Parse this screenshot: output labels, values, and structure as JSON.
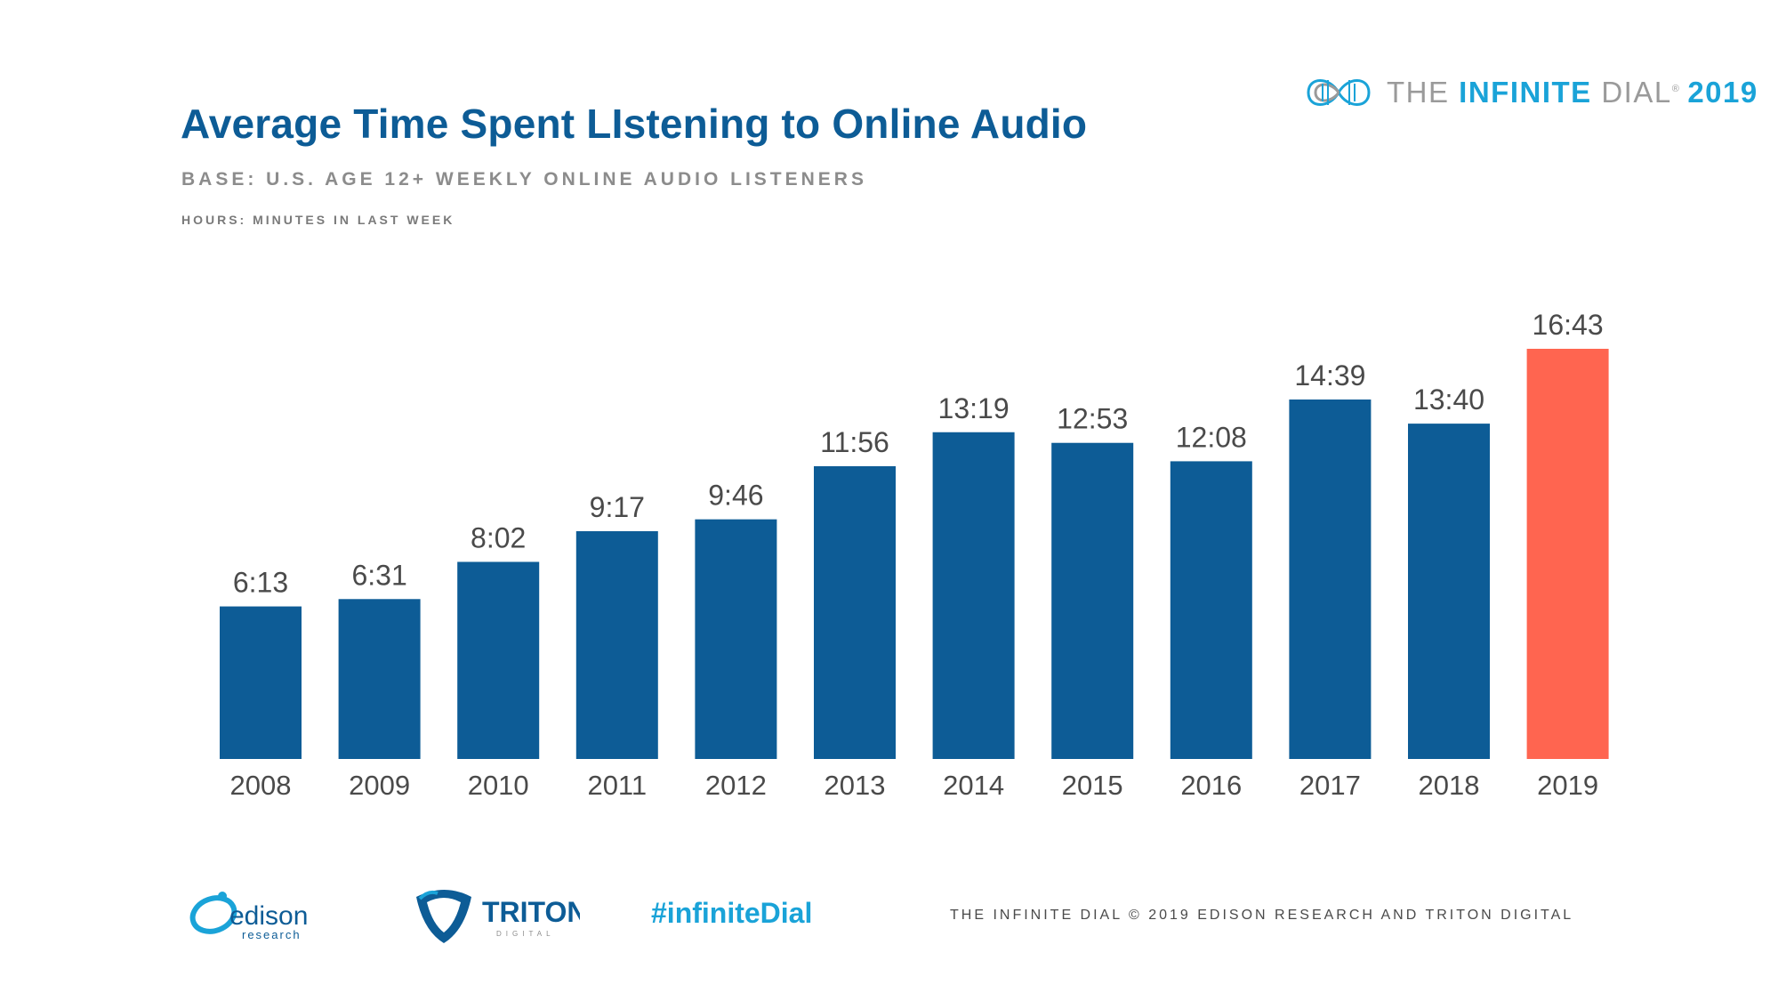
{
  "header": {
    "title": "Average Time Spent LIstening to Online Audio",
    "subtitle": "BASE: U.S. AGE 12+ WEEKLY ONLINE AUDIO LISTENERS",
    "note": "HOURS: MINUTES IN LAST WEEK"
  },
  "brand": {
    "the": "THE ",
    "infinite": "INFINITE",
    "dial": " DIAL",
    "reg": "®",
    "year": "2019"
  },
  "footer": {
    "edison_logo_text": "edison",
    "edison_logo_sub": "research",
    "triton_logo_text": "TRITON",
    "triton_logo_sub": "DIGITAL",
    "hashtag": "#infiniteDial",
    "copyright": "THE INFINITE DIAL © 2019 EDISON RESEARCH AND TRITON DIGITAL"
  },
  "colors": {
    "bar": "#0d5c96",
    "highlight": "#ff6550",
    "title": "#0d5c96",
    "accent": "#1aa3d8"
  },
  "chart_data": {
    "type": "bar",
    "categories": [
      "2008",
      "2009",
      "2010",
      "2011",
      "2012",
      "2013",
      "2014",
      "2015",
      "2016",
      "2017",
      "2018",
      "2019"
    ],
    "values": [
      6.217,
      6.517,
      8.033,
      9.283,
      9.767,
      11.933,
      13.317,
      12.883,
      12.133,
      14.65,
      13.667,
      16.717
    ],
    "labels": [
      "6:13",
      "6:31",
      "8:02",
      "9:17",
      "9:46",
      "11:56",
      "13:19",
      "12:53",
      "12:08",
      "14:39",
      "13:40",
      "16:43"
    ],
    "highlight_category": "2019",
    "ylim": [
      0,
      16.717
    ],
    "grid": false,
    "legend": "none"
  }
}
